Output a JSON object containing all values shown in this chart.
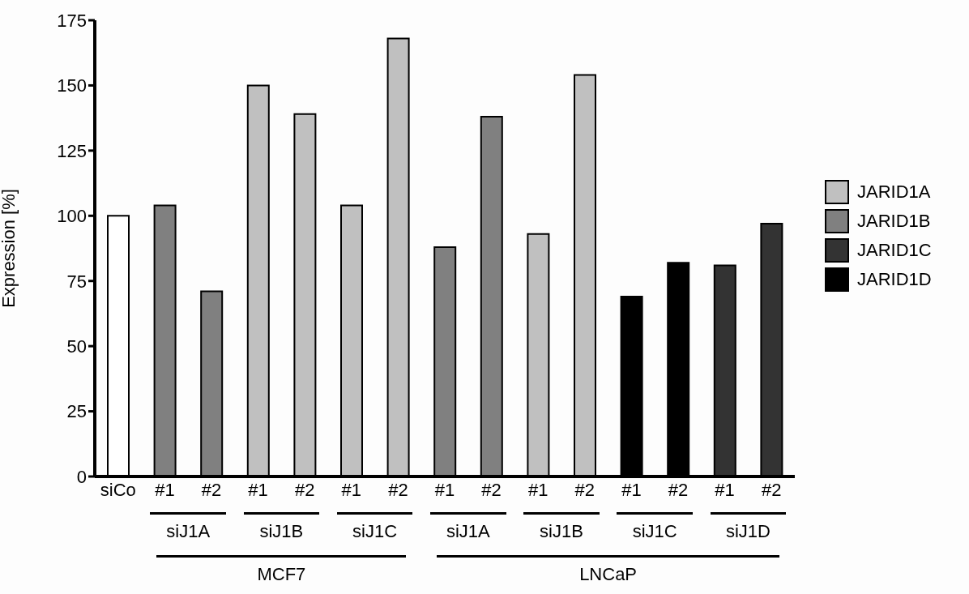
{
  "chart_data": {
    "type": "bar",
    "ylabel": "Expression [%]",
    "categories": [
      "siCo",
      "#1",
      "#2",
      "#1",
      "#2",
      "#1",
      "#2",
      "#1",
      "#2",
      "#1",
      "#2",
      "#1",
      "#2",
      "#1",
      "#2"
    ],
    "series": [
      {
        "color": "#ffffff",
        "values": [
          100,
          null,
          null,
          null,
          null,
          null,
          null,
          null,
          null,
          null,
          null,
          null,
          null,
          null,
          null
        ]
      },
      {
        "name": "JARID1A",
        "color": "#c0c0c0",
        "values": [
          null,
          null,
          null,
          150,
          139,
          104,
          168,
          null,
          null,
          93,
          154,
          null,
          null,
          null,
          null
        ]
      },
      {
        "name": "JARID1B",
        "color": "#808080",
        "values": [
          null,
          104,
          71,
          null,
          null,
          null,
          null,
          88,
          138,
          null,
          null,
          null,
          null,
          null,
          null
        ]
      },
      {
        "name": "JARID1C",
        "color": "#333333",
        "values": [
          null,
          null,
          null,
          null,
          null,
          null,
          null,
          null,
          null,
          null,
          null,
          null,
          null,
          81,
          97
        ]
      },
      {
        "name": "JARID1D",
        "color": "#000000",
        "values": [
          null,
          null,
          null,
          null,
          null,
          null,
          null,
          null,
          null,
          null,
          null,
          69,
          82,
          null,
          null
        ]
      }
    ],
    "stacked": true,
    "ylim": [
      0,
      175
    ],
    "yticks": [
      0,
      25,
      50,
      75,
      100,
      125,
      150,
      175
    ],
    "grid": false,
    "legend": "right",
    "annotations": [
      "siJ1A",
      "siJ1B",
      "siJ1C",
      "siJ1A",
      "siJ1B",
      "siJ1C",
      "siJ1D",
      "MCF7",
      "LNCaP"
    ]
  }
}
